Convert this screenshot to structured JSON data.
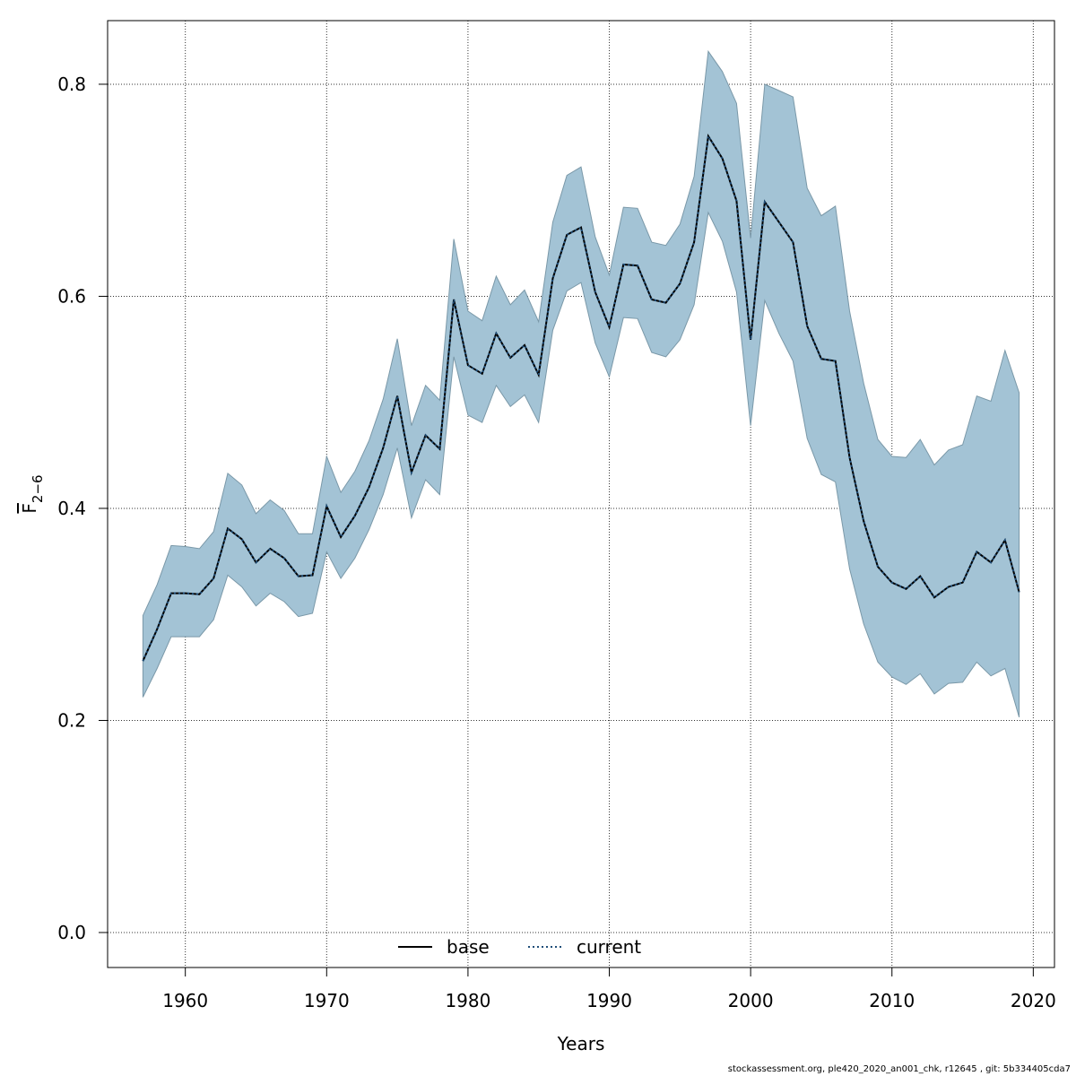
{
  "chart_data": {
    "type": "area",
    "xlabel": "Years",
    "ylabel": {
      "main": "F",
      "subscript": "2−6"
    },
    "xlim": [
      1954.5,
      2021.5
    ],
    "ylim": [
      -0.033,
      0.86
    ],
    "xticks": [
      1960,
      1970,
      1980,
      1990,
      2000,
      2010,
      2020
    ],
    "yticks": [
      0.0,
      0.2,
      0.4,
      0.6,
      0.8
    ],
    "ytick_labels": [
      "0.0",
      "0.2",
      "0.4",
      "0.6",
      "0.8"
    ],
    "grid": true,
    "band_color": "#a3c3d5",
    "band_edge_color": "#7a98a8",
    "x": [
      1957,
      1958,
      1959,
      1960,
      1961,
      1962,
      1963,
      1964,
      1965,
      1966,
      1967,
      1968,
      1969,
      1970,
      1971,
      1972,
      1973,
      1974,
      1975,
      1976,
      1977,
      1978,
      1979,
      1980,
      1981,
      1982,
      1983,
      1984,
      1985,
      1986,
      1987,
      1988,
      1989,
      1990,
      1991,
      1992,
      1993,
      1994,
      1995,
      1996,
      1997,
      1998,
      1999,
      2000,
      2001,
      2002,
      2003,
      2004,
      2005,
      2006,
      2007,
      2008,
      2009,
      2010,
      2011,
      2012,
      2013,
      2014,
      2015,
      2016,
      2017,
      2018,
      2019
    ],
    "upper": [
      0.299,
      0.328,
      0.365,
      0.364,
      0.362,
      0.378,
      0.433,
      0.422,
      0.395,
      0.408,
      0.398,
      0.376,
      0.376,
      0.449,
      0.415,
      0.435,
      0.464,
      0.503,
      0.56,
      0.478,
      0.516,
      0.502,
      0.654,
      0.586,
      0.577,
      0.619,
      0.592,
      0.606,
      0.576,
      0.67,
      0.714,
      0.722,
      0.656,
      0.62,
      0.684,
      0.683,
      0.651,
      0.648,
      0.668,
      0.713,
      0.831,
      0.812,
      0.782,
      0.655,
      0.8,
      0.794,
      0.788,
      0.702,
      0.676,
      0.685,
      0.586,
      0.518,
      0.465,
      0.449,
      0.448,
      0.465,
      0.441,
      0.455,
      0.46,
      0.506,
      0.501,
      0.549,
      0.509
    ],
    "lower": [
      0.222,
      0.249,
      0.279,
      0.279,
      0.279,
      0.295,
      0.337,
      0.326,
      0.308,
      0.32,
      0.312,
      0.298,
      0.301,
      0.359,
      0.334,
      0.353,
      0.38,
      0.413,
      0.457,
      0.391,
      0.427,
      0.413,
      0.543,
      0.488,
      0.481,
      0.516,
      0.496,
      0.507,
      0.481,
      0.568,
      0.605,
      0.613,
      0.556,
      0.524,
      0.58,
      0.579,
      0.547,
      0.543,
      0.559,
      0.592,
      0.679,
      0.652,
      0.604,
      0.478,
      0.596,
      0.565,
      0.539,
      0.466,
      0.432,
      0.425,
      0.343,
      0.291,
      0.255,
      0.241,
      0.234,
      0.244,
      0.225,
      0.235,
      0.236,
      0.255,
      0.242,
      0.249,
      0.203
    ],
    "series": [
      {
        "name": "base",
        "style": "solid",
        "color": "#000000",
        "values": [
          0.256,
          0.286,
          0.32,
          0.32,
          0.319,
          0.334,
          0.381,
          0.371,
          0.349,
          0.362,
          0.353,
          0.336,
          0.337,
          0.402,
          0.373,
          0.393,
          0.42,
          0.457,
          0.506,
          0.434,
          0.469,
          0.456,
          0.597,
          0.535,
          0.527,
          0.565,
          0.542,
          0.554,
          0.526,
          0.617,
          0.658,
          0.665,
          0.604,
          0.571,
          0.63,
          0.629,
          0.597,
          0.594,
          0.612,
          0.651,
          0.751,
          0.73,
          0.69,
          0.559,
          0.689,
          0.67,
          0.651,
          0.572,
          0.541,
          0.539,
          0.448,
          0.388,
          0.345,
          0.33,
          0.324,
          0.336,
          0.316,
          0.326,
          0.33,
          0.359,
          0.349,
          0.37,
          0.321
        ]
      },
      {
        "name": "current",
        "style": "dotted",
        "color": "#1f4e79",
        "values": [
          0.256,
          0.286,
          0.32,
          0.32,
          0.319,
          0.334,
          0.381,
          0.371,
          0.349,
          0.362,
          0.353,
          0.336,
          0.337,
          0.402,
          0.373,
          0.393,
          0.42,
          0.457,
          0.506,
          0.434,
          0.469,
          0.456,
          0.597,
          0.535,
          0.527,
          0.565,
          0.542,
          0.554,
          0.526,
          0.617,
          0.658,
          0.665,
          0.604,
          0.571,
          0.63,
          0.629,
          0.597,
          0.594,
          0.612,
          0.651,
          0.751,
          0.73,
          0.69,
          0.559,
          0.689,
          0.67,
          0.651,
          0.572,
          0.541,
          0.539,
          0.448,
          0.388,
          0.345,
          0.33,
          0.324,
          0.336,
          0.316,
          0.326,
          0.33,
          0.359,
          0.349,
          0.37,
          0.321
        ]
      }
    ],
    "legend": {
      "position": "bottom-center",
      "entries": [
        "base",
        "current"
      ]
    }
  },
  "footer": "stockassessment.org, ple420_2020_an001_chk, r12645 , git: 5b334405cda7"
}
